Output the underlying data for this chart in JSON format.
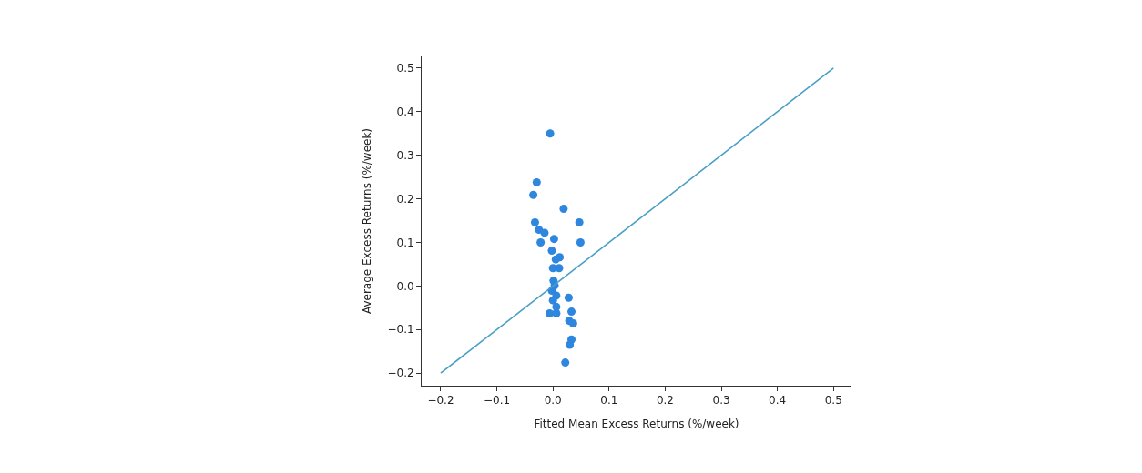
{
  "chart_data": {
    "type": "scatter",
    "xlabel": "Fitted Mean Excess Returns (%/week)",
    "ylabel": "Average Excess Returns (%/week)",
    "xlim": [
      -0.234,
      0.532
    ],
    "ylim": [
      -0.229,
      0.527
    ],
    "xticks": [
      {
        "value": -0.2,
        "label": "−0.2"
      },
      {
        "value": -0.1,
        "label": "−0.1"
      },
      {
        "value": 0,
        "label": "0.0"
      },
      {
        "value": 0.1,
        "label": "0.1"
      },
      {
        "value": 0.2,
        "label": "0.2"
      },
      {
        "value": 0.3,
        "label": "0.3"
      },
      {
        "value": 0.4,
        "label": "0.4"
      },
      {
        "value": 0.5,
        "label": "0.5"
      }
    ],
    "yticks": [
      {
        "value": -0.2,
        "label": "−0.2"
      },
      {
        "value": -0.1,
        "label": "−0.1"
      },
      {
        "value": 0,
        "label": "0.0"
      },
      {
        "value": 0.1,
        "label": "0.1"
      },
      {
        "value": 0.2,
        "label": "0.2"
      },
      {
        "value": 0.3,
        "label": "0.3"
      },
      {
        "value": 0.4,
        "label": "0.4"
      },
      {
        "value": 0.5,
        "label": "0.5"
      }
    ],
    "series": [
      {
        "marker": "circle",
        "color": "#2e86de",
        "x": [
          -0.005,
          -0.029,
          -0.035,
          0.019,
          0.047,
          -0.032,
          -0.025,
          -0.015,
          -0.022,
          0.002,
          0.049,
          -0.002,
          0.012,
          0.005,
          0.0,
          0.011,
          0.001,
          0.003,
          -0.002,
          0.006,
          0.0,
          0.006,
          -0.006,
          0.006,
          0.028,
          0.033,
          0.029,
          0.036,
          0.033,
          0.03,
          0.022
        ],
        "values": [
          0.35,
          0.238,
          0.209,
          0.177,
          0.146,
          0.146,
          0.129,
          0.122,
          0.1,
          0.108,
          0.1,
          0.081,
          0.066,
          0.061,
          0.041,
          0.041,
          0.012,
          0.001,
          -0.011,
          -0.022,
          -0.033,
          -0.048,
          -0.063,
          -0.063,
          -0.027,
          -0.059,
          -0.08,
          -0.086,
          -0.123,
          -0.135,
          -0.176
        ]
      },
      {
        "type": "line",
        "marker": "none",
        "color": "#4a9fc6",
        "x": [
          -0.2,
          0.5
        ],
        "values": [
          -0.2,
          0.5
        ]
      }
    ]
  }
}
